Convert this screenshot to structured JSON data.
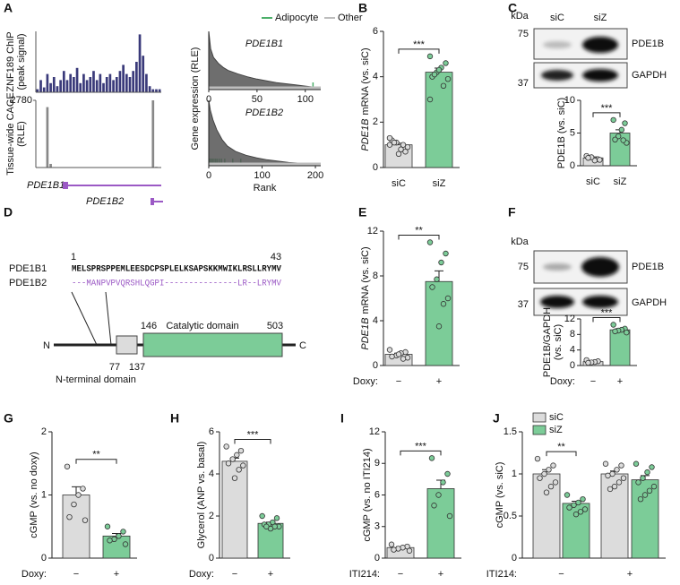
{
  "panels": [
    "A",
    "B",
    "C",
    "D",
    "E",
    "F",
    "G",
    "H",
    "I",
    "J"
  ],
  "genes": {
    "isoform1": "PDE1B1",
    "isoform2": "PDE1B2"
  },
  "blots": [
    {
      "kda": "kDa",
      "markers": [
        75,
        37
      ],
      "lanes": [
        "siC",
        "siZ"
      ],
      "bands": [
        "PDE1B",
        "GAPDH"
      ]
    },
    {
      "kda": "kDa",
      "markers": [
        75,
        37
      ],
      "bands": [
        "PDE1B",
        "GAPDH"
      ]
    }
  ],
  "diagram": {
    "start": "1",
    "end": "43",
    "isoforms": [
      {
        "name": "PDE1B1",
        "sequence": "MELSPRSPPEMLEESDCPSPLELKSAPSKKMWIKLRSLLRYMV"
      },
      {
        "name": "PDE1B2",
        "sequence": "---MANPVPVQRSHLQGPI---------------LR--LRYMV"
      }
    ],
    "n": "N",
    "c": "C",
    "positions": [
      "77",
      "137",
      "146",
      "503"
    ],
    "catalytic": "Catalytic domain",
    "nterminal": "N-terminal domain"
  },
  "chart_data": [
    {
      "type": "track",
      "ylabel": [
        "ZNF189 ChIP",
        "(peak signal)"
      ],
      "color": "#3a3a7a",
      "ylim": [
        0,
        1
      ],
      "values": [
        0.05,
        0.2,
        0.08,
        0.3,
        0.15,
        0.25,
        0.1,
        0.2,
        0.35,
        0.2,
        0.3,
        0.25,
        0.4,
        0.15,
        0.3,
        0.2,
        0.25,
        0.35,
        0.2,
        0.3,
        0.15,
        0.25,
        0.3,
        0.2,
        0.25,
        0.35,
        0.45,
        0.3,
        0.25,
        0.35,
        0.5,
        0.95,
        0.6,
        0.3,
        0.1,
        0.05,
        0.05,
        0.05
      ]
    },
    {
      "type": "track",
      "ylabel": [
        "Tissue-wide CAGE",
        "(RLE)"
      ],
      "color": "#888888",
      "ylim": [
        0,
        2780
      ],
      "yticks": [
        2780
      ],
      "values": [
        0,
        0,
        0,
        2500,
        150,
        20,
        10,
        10,
        10,
        5,
        5,
        5,
        5,
        5,
        5,
        5,
        5,
        5,
        5,
        5,
        5,
        5,
        5,
        5,
        5,
        5,
        5,
        5,
        5,
        5,
        5,
        5,
        5,
        5,
        0,
        2780,
        30,
        0
      ]
    },
    {
      "type": "rank",
      "title": "PDE1B1",
      "xlim": [
        0,
        116
      ],
      "xticks": [
        0,
        50,
        100
      ],
      "ylim": [
        0,
        1
      ],
      "ylabel": "Gene expression (RLE)",
      "series": [
        {
          "name": "Adipocyte",
          "color": "#4caf6a",
          "x": [
            108
          ]
        },
        {
          "name": "Other",
          "color": "#bdbdbd",
          "x": [
            0,
            2,
            5,
            10,
            15,
            20,
            30,
            40,
            50,
            60,
            70,
            80,
            90,
            100,
            110,
            115
          ],
          "values": [
            1.0,
            0.7,
            0.55,
            0.45,
            0.38,
            0.33,
            0.27,
            0.22,
            0.18,
            0.15,
            0.12,
            0.1,
            0.08,
            0.06,
            0.04,
            0.02
          ]
        }
      ]
    },
    {
      "type": "rank",
      "title": "PDE1B2",
      "xlim": [
        0,
        210
      ],
      "xticks": [
        0,
        100,
        200
      ],
      "ylim": [
        0,
        1
      ],
      "xlabel": "Rank",
      "series": [
        {
          "name": "Adipocyte",
          "color": "#4caf6a",
          "x": [
            2,
            5,
            7,
            10,
            13,
            16,
            20,
            24,
            30,
            45,
            60
          ]
        },
        {
          "name": "Other",
          "color": "#bdbdbd",
          "x": [
            0,
            3,
            8,
            15,
            25,
            35,
            50,
            70,
            90,
            110,
            130,
            150,
            170,
            190,
            210
          ],
          "values": [
            1.0,
            0.85,
            0.7,
            0.55,
            0.4,
            0.3,
            0.22,
            0.16,
            0.12,
            0.09,
            0.07,
            0.05,
            0.04,
            0.03,
            0.02
          ]
        }
      ]
    },
    {
      "type": "bar",
      "ylabel_gene": "PDE1B",
      "ylabel": "mRNA (vs. siC)",
      "categories": [
        "siC",
        "siZ"
      ],
      "colors": [
        "#dcdcdc",
        "#7ccc98"
      ],
      "values": [
        1.0,
        4.2
      ],
      "errors": [
        0.07,
        0.18
      ],
      "points": [
        [
          1.0,
          0.7,
          0.8,
          1.1,
          1.2,
          0.9,
          1.0,
          0.6,
          1.1,
          1.3
        ],
        [
          4.9,
          4.6,
          4.4,
          4.2,
          4.0,
          3.9,
          3.6,
          4.3,
          4.1,
          3.0
        ]
      ],
      "ylim": [
        0,
        6
      ],
      "yticks": [
        0,
        2,
        4,
        6
      ],
      "significance": "***"
    },
    {
      "type": "bar",
      "ylabel": "PDE1B (vs. siC)",
      "categories": [
        "siC",
        "siZ"
      ],
      "colors": [
        "#dcdcdc",
        "#7ccc98"
      ],
      "values": [
        1.2,
        5.0
      ],
      "errors": [
        0.15,
        0.5
      ],
      "points": [
        [
          1.5,
          1.0,
          0.8,
          1.3,
          1.2,
          0.9
        ],
        [
          7.0,
          6.5,
          5.5,
          4.5,
          4.0,
          3.5,
          3.9
        ]
      ],
      "ylim": [
        0,
        10
      ],
      "yticks": [
        0,
        5,
        10
      ],
      "significance": "***"
    },
    {
      "type": "bar",
      "ylabel_gene": "PDE1B",
      "ylabel": "mRNA (vs. siC)",
      "xlabel": "Doxy:",
      "categories": [
        "−",
        "+"
      ],
      "colors": [
        "#dcdcdc",
        "#7ccc98"
      ],
      "values": [
        1.0,
        7.5
      ],
      "errors": [
        0.1,
        0.95
      ],
      "points": [
        [
          1.4,
          1.2,
          1.1,
          0.9,
          0.8,
          0.7,
          0.6,
          1.0
        ],
        [
          11.0,
          10.0,
          9.2,
          7.7,
          7.0,
          6.0,
          5.5,
          3.5
        ]
      ],
      "ylim": [
        0,
        12
      ],
      "yticks": [
        0,
        4,
        8,
        12
      ],
      "significance": "**"
    },
    {
      "type": "bar",
      "ylabel": [
        "PDE1B/GAPDH",
        "(vs. siC)"
      ],
      "xlabel": "Doxy:",
      "categories": [
        "−",
        "+"
      ],
      "colors": [
        "#dcdcdc",
        "#7ccc98"
      ],
      "values": [
        1.0,
        9.2
      ],
      "errors": [
        0.15,
        0.3
      ],
      "points": [
        [
          1.4,
          1.1,
          0.9,
          0.8,
          0.7
        ],
        [
          10.5,
          9.5,
          9.2,
          9.0,
          8.8,
          8.5
        ]
      ],
      "ylim": [
        0,
        12
      ],
      "yticks": [
        0,
        4,
        8,
        12
      ],
      "significance": "***"
    },
    {
      "type": "bar",
      "ylabel": "cGMP (vs. no doxy)",
      "xlabel": "Doxy:",
      "categories": [
        "−",
        "+"
      ],
      "colors": [
        "#dcdcdc",
        "#7ccc98"
      ],
      "values": [
        1.0,
        0.35
      ],
      "errors": [
        0.13,
        0.04
      ],
      "points": [
        [
          1.45,
          1.1,
          1.0,
          0.85,
          0.65,
          0.6
        ],
        [
          0.5,
          0.42,
          0.35,
          0.3,
          0.28,
          0.22
        ]
      ],
      "ylim": [
        0,
        2
      ],
      "yticks": [
        0,
        1,
        2
      ],
      "significance": "**"
    },
    {
      "type": "bar",
      "ylabel": "Glycerol (ANP vs. basal)",
      "xlabel": "Doxy:",
      "categories": [
        "−",
        "+"
      ],
      "colors": [
        "#dcdcdc",
        "#7ccc98"
      ],
      "values": [
        4.6,
        1.65
      ],
      "errors": [
        0.15,
        0.06
      ],
      "points": [
        [
          5.3,
          5.1,
          4.9,
          4.7,
          4.5,
          4.4,
          4.2,
          3.8
        ],
        [
          2.0,
          1.9,
          1.7,
          1.6,
          1.6,
          1.5,
          1.5,
          1.4,
          1.5
        ]
      ],
      "ylim": [
        0,
        6
      ],
      "yticks": [
        0,
        2,
        4,
        6
      ],
      "significance": "***"
    },
    {
      "type": "bar",
      "ylabel": "cGMP (vs. no ITI214)",
      "xlabel": "ITI214:",
      "categories": [
        "−",
        "+"
      ],
      "colors": [
        "#dcdcdc",
        "#7ccc98"
      ],
      "values": [
        1.0,
        6.6
      ],
      "errors": [
        0.08,
        0.8
      ],
      "points": [
        [
          1.3,
          1.1,
          1.0,
          0.9,
          0.8,
          0.7
        ],
        [
          9.5,
          8.0,
          7.2,
          6.0,
          5.0,
          4.0
        ]
      ],
      "ylim": [
        0,
        12
      ],
      "yticks": [
        0,
        3,
        6,
        9,
        12
      ],
      "significance": "***"
    },
    {
      "type": "grouped_bar",
      "ylabel": "cGMP (vs. siC)",
      "xlabel": "ITI214:",
      "categories": [
        "−",
        "+"
      ],
      "ylim": [
        0,
        1.5
      ],
      "yticks": [
        0,
        0.5,
        1,
        1.5
      ],
      "significance": "**",
      "series": [
        {
          "name": "siC",
          "color": "#dcdcdc",
          "values": [
            1.0,
            1.0
          ],
          "errors": [
            0.05,
            0.035
          ],
          "points": [
            [
              1.18,
              1.1,
              1.05,
              1.0,
              0.95,
              0.9,
              0.85,
              0.78
            ],
            [
              1.12,
              1.1,
              1.05,
              1.0,
              0.98,
              0.95,
              0.9,
              0.85,
              0.82
            ]
          ]
        },
        {
          "name": "siZ",
          "color": "#7ccc98",
          "values": [
            0.65,
            0.93
          ],
          "errors": [
            0.025,
            0.05
          ],
          "points": [
            [
              0.75,
              0.7,
              0.66,
              0.63,
              0.6,
              0.58,
              0.55,
              0.52
            ],
            [
              1.12,
              1.08,
              1.02,
              0.95,
              0.9,
              0.85,
              0.8,
              0.75,
              0.7
            ]
          ]
        }
      ]
    }
  ]
}
